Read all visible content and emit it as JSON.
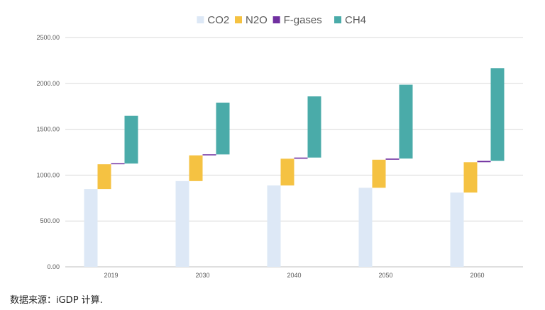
{
  "chart_data": {
    "type": "bar",
    "subtype": "stacked-waterfall",
    "categories": [
      "2019",
      "2030",
      "2040",
      "2050",
      "2060"
    ],
    "series": [
      {
        "name": "CO2",
        "color": "#dde8f6",
        "values": [
          848,
          935,
          887,
          862,
          810
        ]
      },
      {
        "name": "N2O",
        "color": "#f5c242",
        "values": [
          270,
          280,
          292,
          305,
          330
        ]
      },
      {
        "name": "F-gases",
        "color": "#7030a0",
        "values": [
          8,
          10,
          12,
          14,
          16
        ]
      },
      {
        "name": "CH4",
        "color": "#4aaba9",
        "values": [
          520,
          565,
          667,
          805,
          1010
        ]
      }
    ],
    "ylim": [
      0,
      2500
    ],
    "yticks": [
      "0.00",
      "500.00",
      "1000.00",
      "1500.00",
      "2000.00",
      "2500.00"
    ],
    "grid": true,
    "legend": "top"
  },
  "source_note": "数据来源：iGDP 计算."
}
